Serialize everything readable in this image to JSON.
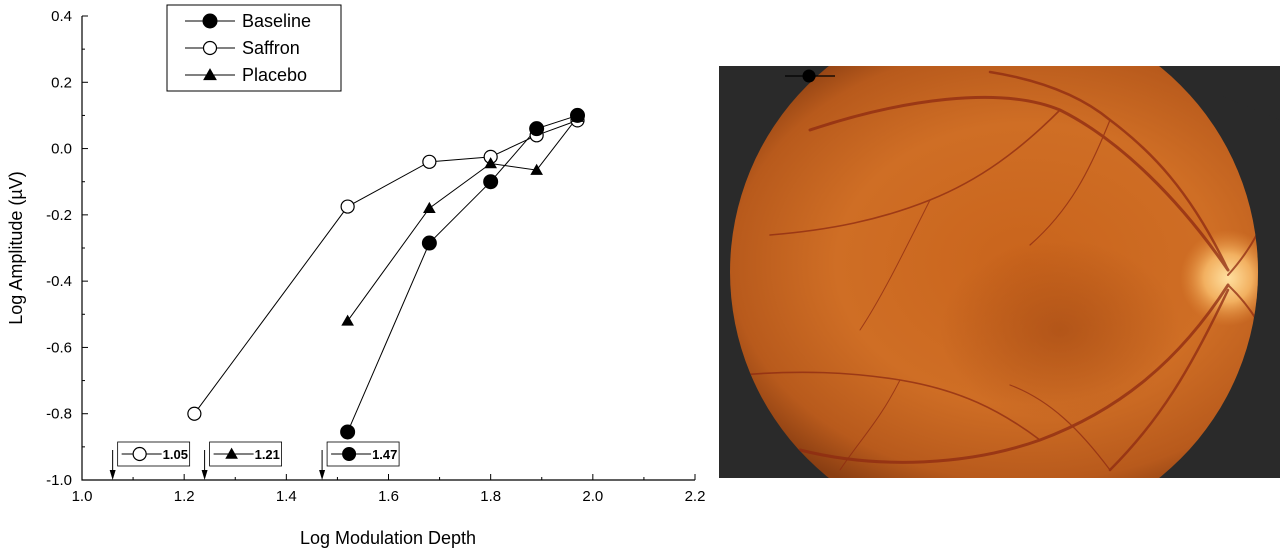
{
  "chart_data": [
    {
      "type": "line",
      "title": "",
      "xlabel": "Log Modulation Depth",
      "ylabel": "Log Amplitude (µV)",
      "xlim": [
        1.0,
        2.2
      ],
      "ylim": [
        -1.0,
        0.4
      ],
      "x_ticks": [
        "1.0",
        "1.2",
        "1.4",
        "1.6",
        "1.8",
        "2.0",
        "2.2"
      ],
      "y_ticks": [
        "-1.0",
        "-0.8",
        "-0.6",
        "-0.4",
        "-0.2",
        "0.0",
        "0.2",
        "0.4"
      ],
      "grid": false,
      "legend_position": "top-left",
      "series": [
        {
          "name": "Baseline",
          "marker": "filled-circle",
          "x": [
            1.52,
            1.68,
            1.8,
            1.89,
            1.97
          ],
          "y": [
            -0.855,
            -0.285,
            -0.1,
            0.06,
            0.1
          ]
        },
        {
          "name": "Saffron",
          "marker": "open-circle",
          "x": [
            1.22,
            1.52,
            1.68,
            1.8,
            1.89,
            1.97
          ],
          "y": [
            -0.8,
            -0.175,
            -0.04,
            -0.025,
            0.04,
            0.085
          ]
        },
        {
          "name": "Placebo",
          "marker": "filled-triangle",
          "x": [
            1.52,
            1.68,
            1.8,
            1.89,
            1.97
          ],
          "y": [
            -0.52,
            -0.18,
            -0.045,
            -0.065,
            0.095
          ]
        }
      ],
      "annotations": [
        {
          "marker": "open-circle",
          "text": "1.05",
          "x": 1.06
        },
        {
          "marker": "filled-triangle",
          "text": "1.21",
          "x": 1.24
        },
        {
          "marker": "filled-circle",
          "text": "1.47",
          "x": 1.47
        }
      ]
    }
  ],
  "fundus_photo": {
    "icon": "retina-fundus-image",
    "background_color": "#2a2a2a",
    "retina_color": "#c8661e",
    "legend_marker": "filled-circle"
  }
}
